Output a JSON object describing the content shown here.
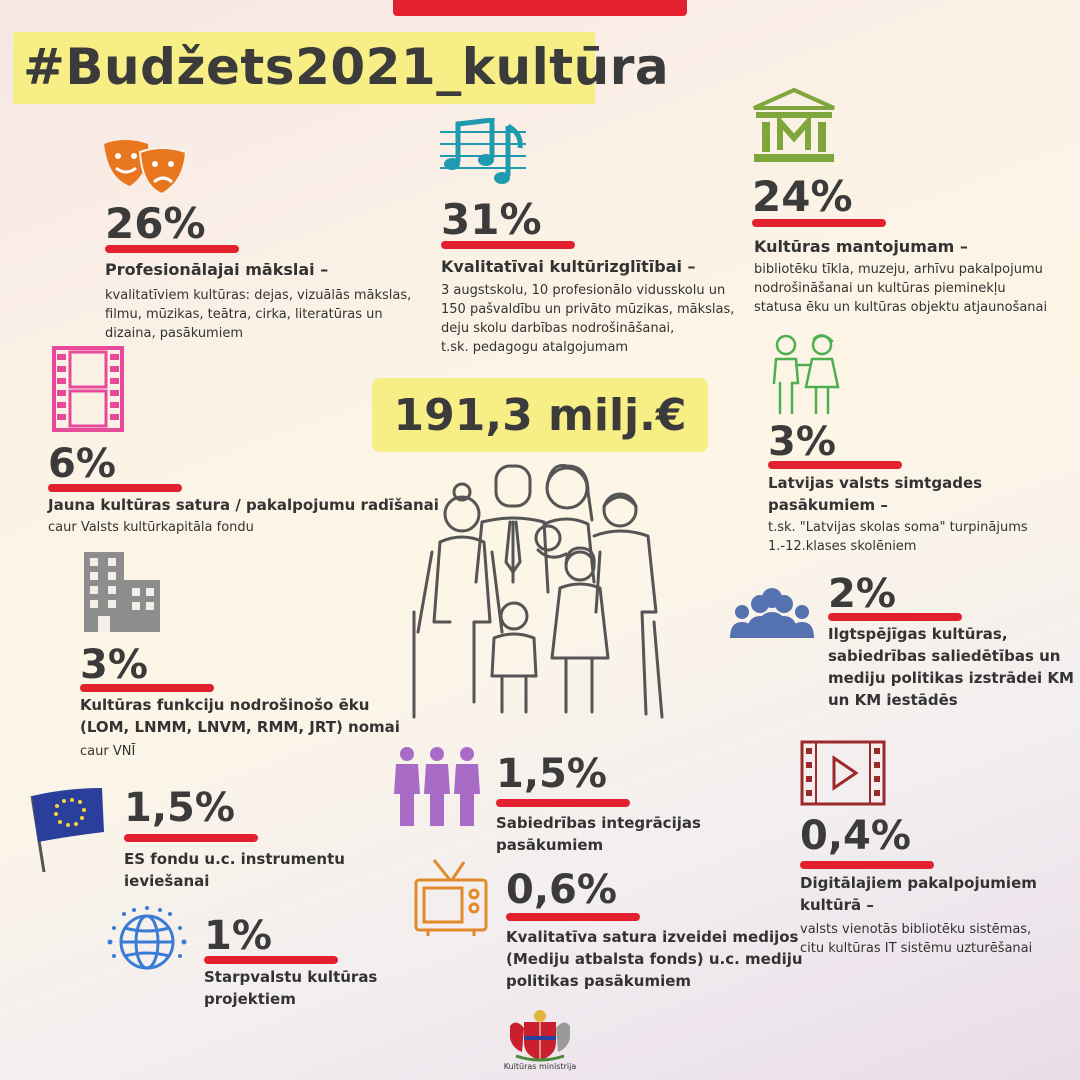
{
  "header": {
    "hashtag": "#Budžets2021_kultūra"
  },
  "total": "191,3 milj.€",
  "items": {
    "prof_art": {
      "pct": "26%",
      "title": "Profesionālajai mākslai –",
      "desc": [
        "kvalitatīviem kultūras: dejas, vizuālās mākslas,",
        "filmu, mūzikas, teātra, cirka, literatūras un",
        "dizaina, pasākumiem"
      ],
      "icon": "theater-masks-icon",
      "color": "#e8761e"
    },
    "education": {
      "pct": "31%",
      "title": "Kvalitatīvai kultūrizglītībai –",
      "desc": [
        "3 augstskolu, 10 profesionālo vidusskolu un",
        "150 pašvaldību un privāto mūzikas, mākslas,",
        "deju skolu darbības nodrošināšanai,",
        "t.sk. pedagogu atalgojumam"
      ],
      "icon": "music-notes-icon",
      "color": "#1f9bb0"
    },
    "heritage": {
      "pct": "24%",
      "title": "Kultūras mantojumam –",
      "desc": [
        "bibliotēku tīkla, muzeju, arhīvu pakalpojumu",
        "nodrošināšanai un kultūras pieminekļu",
        "statusa ēku un kultūras objektu atjaunošanai"
      ],
      "icon": "museum-icon",
      "color": "#7ea63a"
    },
    "new_content": {
      "pct": "6%",
      "title": "Jauna kultūras satura / pakalpojumu radīšanai",
      "desc": [
        "caur Valsts kultūrkapitāla fondu"
      ],
      "icon": "film-strip-icon",
      "color": "#e84a9a"
    },
    "centenary": {
      "pct": "3%",
      "title": [
        "Latvijas valsts simtgades",
        "pasākumiem –"
      ],
      "desc": [
        "t.sk. \"Latvijas skolas soma\" turpinājums",
        "1.-12.klases skolēniem"
      ],
      "icon": "children-icon",
      "color": "#4caf50"
    },
    "buildings": {
      "pct": "3%",
      "title": [
        "Kultūras funkciju nodrošinošo ēku",
        "(LOM, LNMM, LNVM, RMM, JRT) nomai"
      ],
      "desc": [
        "caur VNĪ"
      ],
      "icon": "buildings-icon",
      "color": "#8d8d8d"
    },
    "sustainable": {
      "pct": "2%",
      "title": [
        "Ilgtspējīgas kultūras,",
        "sabiedrības saliedētības un",
        "mediju politikas izstrādei KM",
        "un KM iestādēs"
      ],
      "icon": "people-group-icon",
      "color": "#5572b0"
    },
    "eu_funds": {
      "pct": "1,5%",
      "title": [
        "ES fondu u.c. instrumentu",
        "ieviešanai"
      ],
      "icon": "eu-flag-icon",
      "color": "#2a3f9c"
    },
    "integration": {
      "pct": "1,5%",
      "title": [
        "Sabiedrības integrācijas",
        "pasākumiem"
      ],
      "icon": "three-people-icon",
      "color": "#a86bc6"
    },
    "digital": {
      "pct": "0,4%",
      "title": [
        "Digitālajiem pakalpojumiem",
        "kultūrā –"
      ],
      "desc": [
        "valsts vienotās bibliotēku sistēmas,",
        "citu kultūras IT sistēmu uzturēšanai"
      ],
      "icon": "video-play-icon",
      "color": "#9b2b2b"
    },
    "media": {
      "pct": "0,6%",
      "title": [
        "Kvalitatīva satura izveidei medijos",
        "(Mediju atbalsta fonds) u.c. mediju",
        "politikas pasākumiem"
      ],
      "icon": "tv-icon",
      "color": "#e08a2a"
    },
    "international": {
      "pct": "1%",
      "title": [
        "Starpvalstu kultūras",
        "projektiem"
      ],
      "icon": "globe-icon",
      "color": "#3a7bd5"
    }
  },
  "footer": {
    "ministry": "Kultūras ministrija"
  }
}
